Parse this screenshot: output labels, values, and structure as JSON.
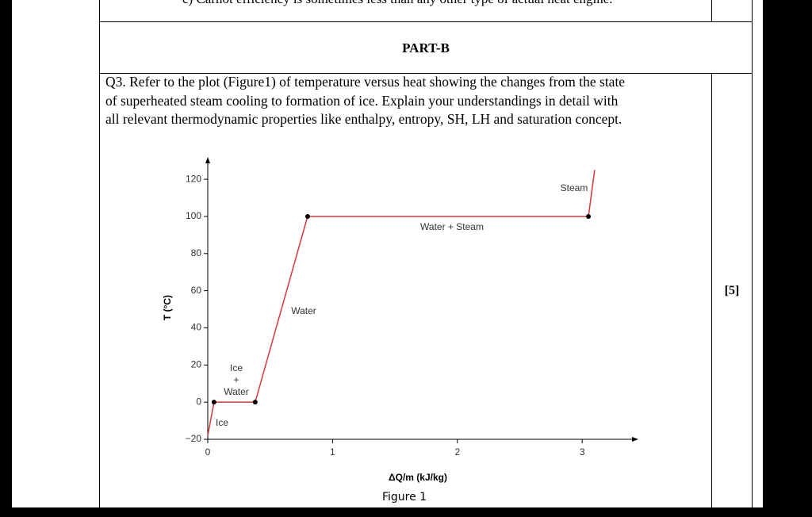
{
  "previous_row": {
    "text": "c) Carnot efficiency is sometimes less than any other type of actual heat engine."
  },
  "section": {
    "title": "PART-B"
  },
  "question": {
    "lines": [
      "Q3. Refer to the plot (Figure1) of temperature versus heat showing the changes from the state",
      "of superheated steam cooling to formation of ice. Explain your understandings in detail with",
      "all relevant thermodynamic properties like enthalpy, entropy, SH, LH and saturation concept."
    ],
    "marks": "[5]"
  },
  "figure": {
    "caption": "Figure 1",
    "chart_data": {
      "type": "line",
      "xlabel": "ΔQ/m (kJ/kg)",
      "ylabel": "T (°C)",
      "x": [
        0,
        0.05,
        0.38,
        0.8,
        3.05,
        3.1
      ],
      "series": [
        {
          "color": "#d9363e",
          "values": [
            -18,
            0,
            0,
            100,
            100,
            125
          ],
          "markers": [
            false,
            true,
            true,
            true,
            true,
            false
          ]
        }
      ],
      "marker_color": "#000000",
      "xlim": [
        0,
        3.45
      ],
      "ylim": [
        -20,
        132
      ],
      "xticks": [
        0,
        1,
        2,
        3
      ],
      "yticks": [
        {
          "value": -20,
          "label": "−20"
        },
        0,
        20,
        40,
        60,
        80,
        100,
        120
      ],
      "annotations": [
        "Ice",
        "Ice",
        "+",
        "Water",
        "Water",
        "Water + Steam",
        "Steam"
      ]
    }
  }
}
